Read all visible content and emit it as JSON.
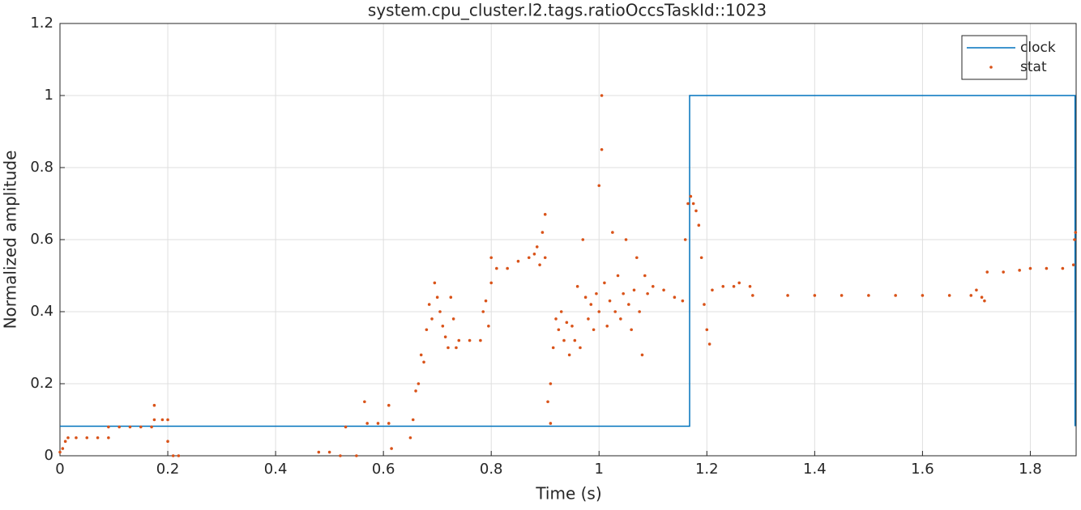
{
  "chart_data": {
    "type": "line",
    "title": "system.cpu_cluster.l2.tags.ratioOccsTaskId::1023",
    "x_label": "Time (s)",
    "y_label": "Normalized amplitude",
    "xlim": [
      0,
      1.885
    ],
    "ylim": [
      0,
      1.2
    ],
    "xticks": [
      0,
      0.2,
      0.4,
      0.6,
      0.8,
      1,
      1.2,
      1.4,
      1.6,
      1.8
    ],
    "yticks": [
      0,
      0.2,
      0.4,
      0.6,
      0.8,
      1,
      1.2
    ],
    "grid": true,
    "legend": "northeast",
    "series": [
      {
        "name": "clock",
        "type": "line",
        "color": "#0072bd",
        "x": [
          0,
          1.168,
          1.168,
          1.883,
          1.883
        ],
        "values": [
          0.082,
          0.082,
          1,
          1,
          0.082
        ]
      },
      {
        "name": "stat",
        "type": "scatter",
        "color": "#d95319",
        "x": [
          0.0,
          0.005,
          0.01,
          0.015,
          0.03,
          0.05,
          0.07,
          0.09,
          0.09,
          0.11,
          0.13,
          0.15,
          0.17,
          0.175,
          0.175,
          0.19,
          0.2,
          0.2,
          0.21,
          0.22,
          0.48,
          0.5,
          0.52,
          0.53,
          0.55,
          0.565,
          0.57,
          0.59,
          0.61,
          0.61,
          0.615,
          0.65,
          0.655,
          0.66,
          0.665,
          0.67,
          0.675,
          0.68,
          0.685,
          0.69,
          0.695,
          0.7,
          0.705,
          0.71,
          0.715,
          0.72,
          0.725,
          0.73,
          0.735,
          0.74,
          0.76,
          0.78,
          0.785,
          0.79,
          0.795,
          0.8,
          0.8,
          0.81,
          0.83,
          0.85,
          0.87,
          0.88,
          0.885,
          0.89,
          0.895,
          0.9,
          0.9,
          0.905,
          0.91,
          0.91,
          0.915,
          0.92,
          0.925,
          0.93,
          0.935,
          0.94,
          0.945,
          0.95,
          0.955,
          0.96,
          0.965,
          0.97,
          0.975,
          0.98,
          0.985,
          0.99,
          0.995,
          1.0,
          1.0,
          1.005,
          1.005,
          1.01,
          1.015,
          1.02,
          1.025,
          1.03,
          1.035,
          1.04,
          1.045,
          1.05,
          1.055,
          1.06,
          1.065,
          1.07,
          1.075,
          1.08,
          1.085,
          1.09,
          1.1,
          1.12,
          1.14,
          1.155,
          1.16,
          1.165,
          1.17,
          1.175,
          1.18,
          1.185,
          1.19,
          1.195,
          1.2,
          1.205,
          1.21,
          1.23,
          1.25,
          1.26,
          1.28,
          1.285,
          1.35,
          1.4,
          1.45,
          1.5,
          1.55,
          1.6,
          1.65,
          1.69,
          1.7,
          1.71,
          1.715,
          1.72,
          1.75,
          1.78,
          1.8,
          1.83,
          1.86,
          1.88,
          1.882,
          1.884
        ],
        "values": [
          0.01,
          0.02,
          0.04,
          0.05,
          0.05,
          0.05,
          0.05,
          0.05,
          0.08,
          0.08,
          0.08,
          0.08,
          0.08,
          0.14,
          0.1,
          0.1,
          0.1,
          0.04,
          0.0,
          0.0,
          0.01,
          0.01,
          0.0,
          0.08,
          0.0,
          0.15,
          0.09,
          0.09,
          0.09,
          0.14,
          0.02,
          0.05,
          0.1,
          0.18,
          0.2,
          0.28,
          0.26,
          0.35,
          0.42,
          0.38,
          0.48,
          0.44,
          0.4,
          0.36,
          0.33,
          0.3,
          0.44,
          0.38,
          0.3,
          0.32,
          0.32,
          0.32,
          0.4,
          0.43,
          0.36,
          0.48,
          0.55,
          0.52,
          0.52,
          0.54,
          0.55,
          0.56,
          0.58,
          0.53,
          0.62,
          0.67,
          0.55,
          0.15,
          0.09,
          0.2,
          0.3,
          0.38,
          0.35,
          0.4,
          0.32,
          0.37,
          0.28,
          0.36,
          0.32,
          0.47,
          0.3,
          0.6,
          0.44,
          0.38,
          0.42,
          0.35,
          0.45,
          0.4,
          0.75,
          1.0,
          0.85,
          0.48,
          0.36,
          0.43,
          0.62,
          0.4,
          0.5,
          0.38,
          0.45,
          0.6,
          0.42,
          0.35,
          0.46,
          0.55,
          0.4,
          0.28,
          0.5,
          0.45,
          0.47,
          0.46,
          0.44,
          0.43,
          0.6,
          0.7,
          0.72,
          0.7,
          0.68,
          0.64,
          0.55,
          0.42,
          0.35,
          0.31,
          0.46,
          0.47,
          0.47,
          0.48,
          0.47,
          0.445,
          0.445,
          0.445,
          0.445,
          0.445,
          0.445,
          0.445,
          0.445,
          0.445,
          0.46,
          0.44,
          0.43,
          0.51,
          0.51,
          0.515,
          0.52,
          0.52,
          0.52,
          0.53,
          0.6,
          0.62
        ]
      }
    ]
  }
}
